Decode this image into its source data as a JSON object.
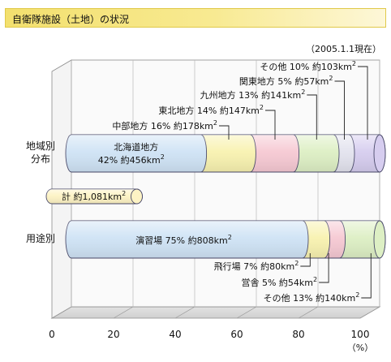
{
  "header": {
    "title": "自衛隊施設（土地）の状況",
    "date": "（2005.1.1現在）"
  },
  "chart_data": {
    "type": "bar",
    "xlim": [
      0,
      100
    ],
    "ticks": [
      "0",
      "20",
      "40",
      "60",
      "80",
      "100"
    ],
    "unit": "（%）",
    "rows": [
      {
        "label_lines": [
          "地域別",
          "分布"
        ],
        "segments": [
          {
            "name": "北海道地方",
            "percent": 42,
            "area": "約456km",
            "label": "北海道地方",
            "value_label": "42%",
            "area_label": "約456km",
            "color": "#cfe3f5"
          },
          {
            "name": "中部地方",
            "percent": 16,
            "area": "約178km",
            "label": "中部地方 16% 約178km",
            "color": "#f8f2b0"
          },
          {
            "name": "東北地方",
            "percent": 14,
            "area": "約147km",
            "label": "東北地方 14% 約147km",
            "color": "#f6c9d3"
          },
          {
            "name": "九州地方",
            "percent": 13,
            "area": "約141km",
            "label": "九州地方 13% 約141km",
            "color": "#ddefc4"
          },
          {
            "name": "関東地方",
            "percent": 5,
            "area": "約57km",
            "label": "関東地方 5% 約57km",
            "color": "#e3e3ee"
          },
          {
            "name": "その他",
            "percent": 10,
            "area": "約103km",
            "label": "その他 10% 約103km",
            "color": "#d6cdef"
          }
        ]
      },
      {
        "label_lines": [
          "用途別"
        ],
        "segments": [
          {
            "name": "演習場",
            "percent": 75,
            "area": "約808km",
            "label": "演習場 75% 約808km",
            "color": "#cfe3f5"
          },
          {
            "name": "飛行場",
            "percent": 7,
            "area": "約80km",
            "label": "飛行場 7% 約80km",
            "color": "#f8f2b0"
          },
          {
            "name": "営舎",
            "percent": 5,
            "area": "約54km",
            "label": "営舎 5% 約54km",
            "color": "#f6c9d3"
          },
          {
            "name": "その他",
            "percent": 13,
            "area": "約140km",
            "label": "その他 13% 約140km",
            "color": "#ddefc4"
          }
        ]
      }
    ],
    "total": {
      "label": "計 約1,081km",
      "value": 1081,
      "percent": 27.5
    },
    "superscript": "2"
  }
}
